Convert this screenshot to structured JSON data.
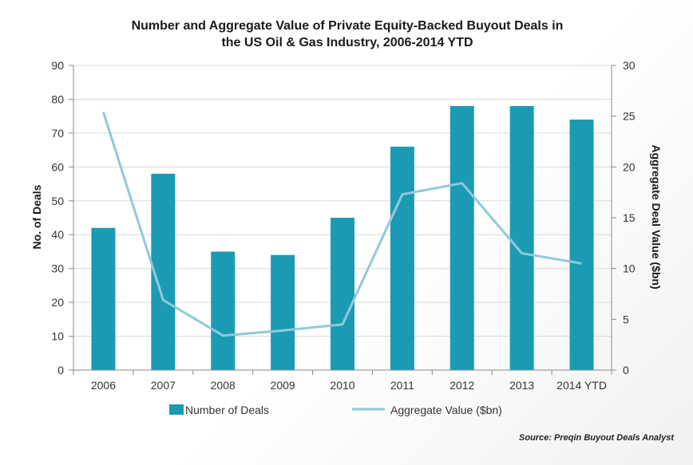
{
  "chart_data": {
    "type": "bar",
    "title": "Number and Aggregate Value of Private Equity-Backed Buyout Deals in the US Oil & Gas Industry, 2006-2014 YTD",
    "title_lines": [
      "Number and Aggregate Value of Private Equity-Backed Buyout Deals in",
      "the US Oil & Gas Industry, 2006-2014 YTD"
    ],
    "categories": [
      "2006",
      "2007",
      "2008",
      "2009",
      "2010",
      "2011",
      "2012",
      "2013",
      "2014 YTD"
    ],
    "series": [
      {
        "name": "Number of Deals",
        "type": "bar",
        "axis": "left",
        "color": "#1a9bb3",
        "values": [
          42,
          58,
          35,
          34,
          45,
          66,
          78,
          78,
          74
        ]
      },
      {
        "name": "Aggregate Value ($bn)",
        "type": "line",
        "axis": "right",
        "color": "#8fc9db",
        "values": [
          25.4,
          6.9,
          3.4,
          3.9,
          4.5,
          17.3,
          18.4,
          11.5,
          10.5
        ]
      }
    ],
    "ylabel": "No. of Deals",
    "y2label": "Aggregate Deal Value ($bn)",
    "ylim": [
      0,
      90
    ],
    "y2lim": [
      0,
      30
    ],
    "yticks": [
      "0",
      "10",
      "20",
      "30",
      "40",
      "50",
      "60",
      "70",
      "80",
      "90"
    ],
    "y2ticks": [
      "0",
      "5",
      "10",
      "15",
      "20",
      "25",
      "30"
    ],
    "grid": true,
    "legend_position": "bottom"
  },
  "source": "Source: Preqin Buyout Deals Analyst"
}
